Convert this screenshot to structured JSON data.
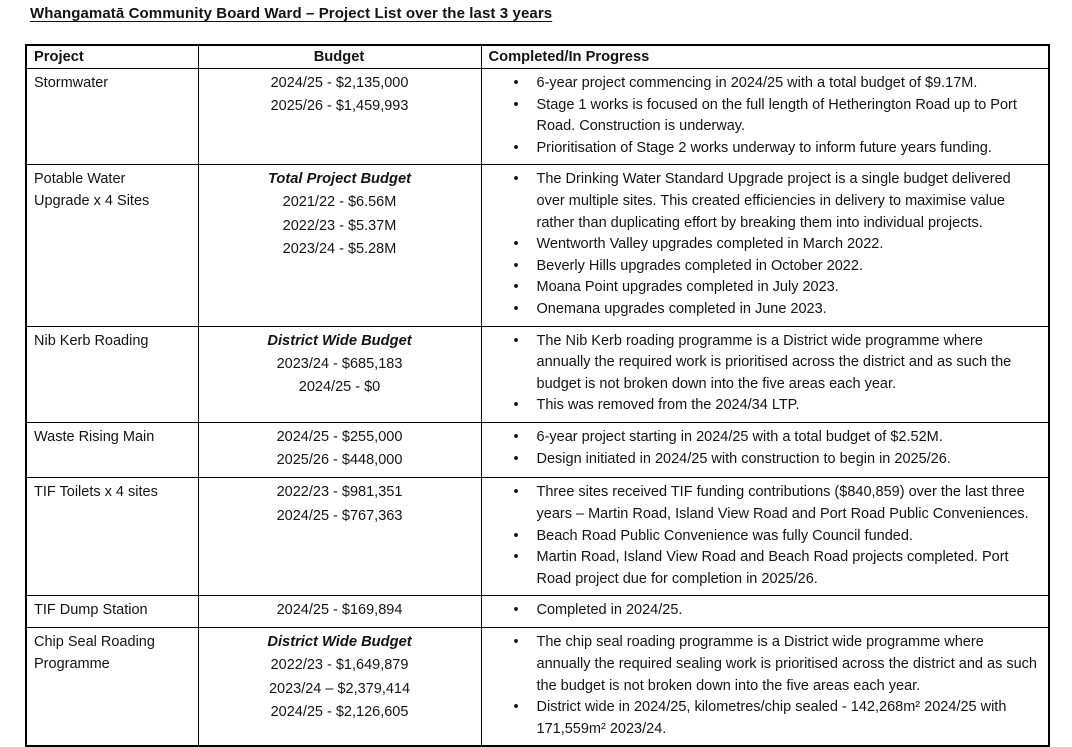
{
  "title": "Whangamatā Community Board Ward – Project List over the last 3 years",
  "table": {
    "headers": [
      "Project",
      "Budget",
      "Completed/In Progress"
    ],
    "rows": [
      {
        "project": "Stormwater",
        "budget_heading": "",
        "budget_lines": [
          "2024/25 - $2,135,000",
          "2025/26 - $1,459,993"
        ],
        "bullets": [
          "6-year project commencing in 2024/25 with a total budget of $9.17M.",
          "Stage 1 works is focused on the full length of Hetherington Road up to Port Road. Construction is underway.",
          "Prioritisation of Stage 2 works underway to inform future years funding."
        ]
      },
      {
        "project": "Potable Water Upgrade x 4 Sites",
        "budget_heading": "Total Project Budget",
        "budget_lines": [
          "2021/22 - $6.56M",
          "2022/23 - $5.37M",
          "2023/24 - $5.28M"
        ],
        "bullets": [
          "The Drinking Water Standard Upgrade project is a single budget delivered over multiple sites. This created efficiencies in delivery to maximise value rather than duplicating effort by breaking them into individual projects.",
          "Wentworth Valley upgrades completed in March 2022.",
          "Beverly Hills upgrades completed in October 2022.",
          "Moana Point upgrades completed in July 2023.",
          "Onemana upgrades completed in June 2023."
        ]
      },
      {
        "project": "Nib Kerb Roading",
        "budget_heading": "District Wide Budget",
        "budget_lines": [
          "2023/24 - $685,183",
          "2024/25 - $0"
        ],
        "bullets": [
          "The Nib Kerb roading programme is a District wide programme where annually the required work is prioritised across the district and as such the budget is not broken down into the five areas each year.",
          "This was removed from the 2024/34 LTP."
        ]
      },
      {
        "project": "Waste Rising Main",
        "budget_heading": "",
        "budget_lines": [
          "2024/25 - $255,000",
          "2025/26 - $448,000"
        ],
        "bullets": [
          "6-year project starting in 2024/25 with a total budget of $2.52M.",
          "Design initiated in 2024/25 with construction to begin in 2025/26."
        ]
      },
      {
        "project": "TIF Toilets x 4 sites",
        "budget_heading": "",
        "budget_lines": [
          "2022/23 - $981,351",
          "2024/25 - $767,363"
        ],
        "bullets": [
          "Three sites received TIF funding contributions ($840,859) over the last three years – Martin Road, Island View Road and Port Road Public Conveniences.",
          "Beach Road Public Convenience was fully Council funded.",
          "Martin Road, Island View Road and Beach Road projects completed. Port Road project due for completion in 2025/26."
        ]
      },
      {
        "project": "TIF Dump Station",
        "budget_heading": "",
        "budget_lines": [
          "2024/25 - $169,894"
        ],
        "bullets": [
          "Completed in 2024/25."
        ]
      },
      {
        "project": "Chip Seal Roading Programme",
        "budget_heading": "District Wide Budget",
        "budget_lines": [
          "2022/23 - $1,649,879",
          "2023/24 – $2,379,414",
          "2024/25 - $2,126,605"
        ],
        "bullets": [
          "The chip seal roading programme is a District wide programme where annually the required sealing work is prioritised across the district and as such the budget is not broken down into the five areas each year.",
          "District wide in 2024/25, kilometres/chip sealed - 142,268m² 2024/25 with 171,559m² 2023/24."
        ]
      }
    ]
  }
}
